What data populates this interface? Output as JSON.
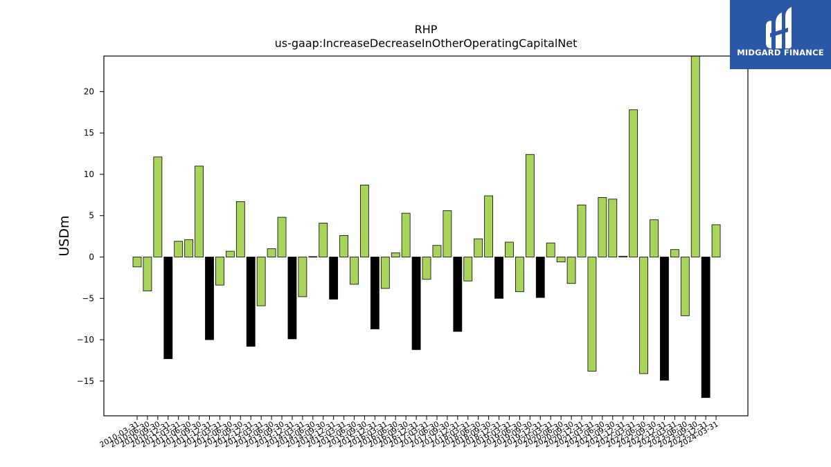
{
  "colors": {
    "positive_bar": "#a8d45c",
    "negative_bar": "#000000",
    "bar_edge": "#000000",
    "logo_background": "#2b57a7",
    "logo_foreground": "#ffffff"
  },
  "logo": {
    "text": "MIDGARD FINANCE",
    "icon": "midgard-finance-logo-icon"
  },
  "chart_data": {
    "type": "bar",
    "title": "RHP",
    "subtitle": "us-gaap:IncreaseDecreaseInOtherOperatingCapitalNet",
    "ylabel": "USDm",
    "xlabel": "",
    "ylim": [
      -19.2,
      24.3
    ],
    "yticks": [
      -15,
      -10,
      -5,
      0,
      5,
      10,
      15,
      20
    ],
    "grid": false,
    "categories": [
      "2010-03-31",
      "2010-06-30",
      "2010-09-30",
      "2010-12-31",
      "2011-03-31",
      "2011-06-30",
      "2011-09-30",
      "2011-12-31",
      "2012-03-31",
      "2012-06-30",
      "2012-09-30",
      "2012-12-31",
      "2013-03-31",
      "2013-06-30",
      "2013-09-30",
      "2013-12-31",
      "2014-03-31",
      "2014-06-30",
      "2014-09-30",
      "2014-12-31",
      "2015-03-31",
      "2015-06-30",
      "2015-09-30",
      "2015-12-31",
      "2016-03-31",
      "2016-06-30",
      "2016-09-30",
      "2016-12-31",
      "2017-03-31",
      "2017-06-30",
      "2017-09-30",
      "2017-12-31",
      "2018-03-31",
      "2018-06-30",
      "2018-09-30",
      "2018-12-31",
      "2019-03-31",
      "2019-06-30",
      "2019-09-30",
      "2019-12-31",
      "2020-03-31",
      "2020-06-30",
      "2020-09-30",
      "2020-12-31",
      "2021-03-31",
      "2021-06-30",
      "2021-09-30",
      "2021-12-31",
      "2022-03-31",
      "2022-06-30",
      "2022-09-30",
      "2022-12-31",
      "2023-03-31",
      "2023-06-30",
      "2023-09-30",
      "2023-12-31",
      "2024-03-31"
    ],
    "values": [
      -1.2,
      -4.1,
      12.1,
      -12.3,
      1.9,
      2.1,
      11.0,
      -10.0,
      -3.4,
      0.7,
      6.7,
      -10.8,
      -5.9,
      1.0,
      4.8,
      -9.9,
      -4.8,
      0.05,
      4.1,
      -5.1,
      2.6,
      -3.3,
      8.7,
      -8.7,
      -3.8,
      0.5,
      5.3,
      -11.2,
      -2.7,
      1.4,
      5.6,
      -9.0,
      -2.9,
      2.2,
      7.4,
      -5.0,
      1.8,
      -4.2,
      12.4,
      -4.9,
      1.7,
      -0.6,
      -3.2,
      6.3,
      -13.8,
      7.2,
      7.0,
      0.1,
      17.8,
      -14.1,
      4.5,
      -14.9,
      0.9,
      -7.1,
      24.3,
      -17.0,
      3.9
    ],
    "color_rule": "Q4 (December) periods negative shown black; all other bars light green"
  }
}
